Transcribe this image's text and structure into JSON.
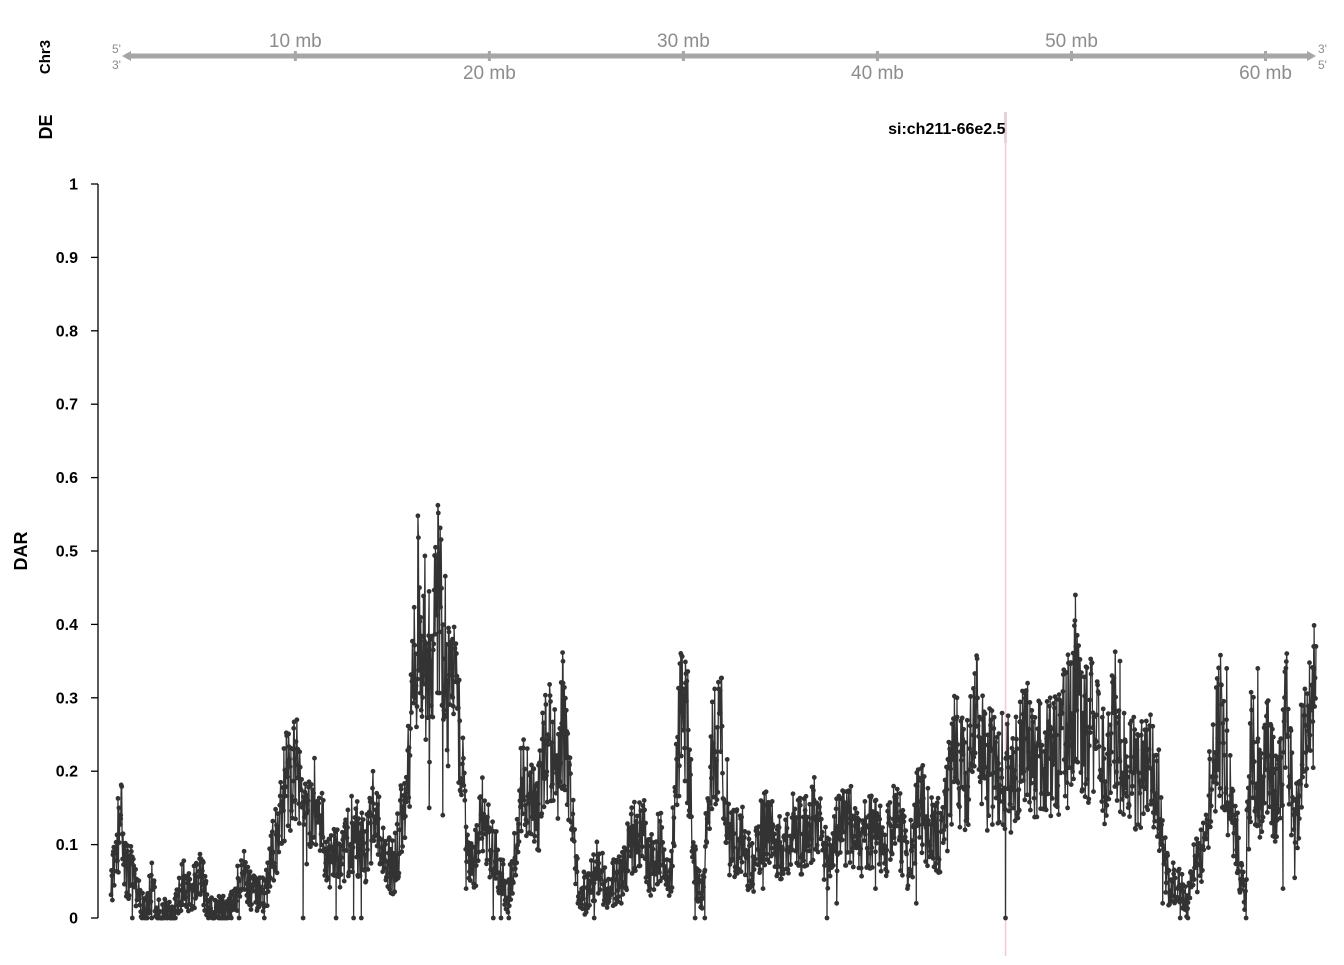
{
  "chart_data": {
    "type": "line",
    "chromosome": "Chr3",
    "tracks": {
      "ideogram_label": "Chr3",
      "de_label": "DE",
      "dar_label": "DAR"
    },
    "strand_labels": {
      "left_top": "5'",
      "left_bottom": "3'",
      "right_top": "3'",
      "right_bottom": "5'"
    },
    "genome_axis": {
      "range_mb": [
        0.5,
        62.6
      ],
      "ticks": [
        {
          "mb": 10,
          "label": "10 mb",
          "row": "top"
        },
        {
          "mb": 20,
          "label": "20 mb",
          "row": "bottom"
        },
        {
          "mb": 30,
          "label": "30 mb",
          "row": "top"
        },
        {
          "mb": 40,
          "label": "40 mb",
          "row": "bottom"
        },
        {
          "mb": 50,
          "label": "50 mb",
          "row": "top"
        },
        {
          "mb": 60,
          "label": "60 mb",
          "row": "bottom"
        }
      ]
    },
    "highlight": {
      "gene": "si:ch211-66e2.5",
      "position_mb": 46.6,
      "color": "#f4c9d3"
    },
    "y_axis": {
      "ylim": [
        0,
        1
      ],
      "ticks": [
        "0",
        "0.1",
        "0.2",
        "0.3",
        "0.4",
        "0.5",
        "0.6",
        "0.7",
        "0.8",
        "0.9",
        "1"
      ]
    },
    "line_color": "#333333",
    "anchors": [
      [
        0.5,
        0.03
      ],
      [
        0.8,
        0.1
      ],
      [
        1.0,
        0.14
      ],
      [
        1.3,
        0.06
      ],
      [
        1.6,
        0.07
      ],
      [
        2.0,
        0.02
      ],
      [
        2.3,
        0.005
      ],
      [
        2.6,
        0.05
      ],
      [
        2.9,
        0.005
      ],
      [
        3.2,
        0.01
      ],
      [
        3.7,
        0.0
      ],
      [
        4.2,
        0.05
      ],
      [
        4.6,
        0.03
      ],
      [
        5.1,
        0.06
      ],
      [
        5.6,
        0.01
      ],
      [
        6.3,
        0.01
      ],
      [
        6.8,
        0.02
      ],
      [
        7.3,
        0.07
      ],
      [
        7.8,
        0.03
      ],
      [
        8.4,
        0.03
      ],
      [
        9.1,
        0.12
      ],
      [
        9.5,
        0.18
      ],
      [
        10.0,
        0.22
      ],
      [
        10.6,
        0.13
      ],
      [
        11.0,
        0.16
      ],
      [
        11.6,
        0.09
      ],
      [
        12.4,
        0.08
      ],
      [
        13.0,
        0.12
      ],
      [
        13.6,
        0.09
      ],
      [
        14.1,
        0.15
      ],
      [
        14.5,
        0.08
      ],
      [
        15.1,
        0.07
      ],
      [
        15.6,
        0.15
      ],
      [
        16.0,
        0.28
      ],
      [
        16.4,
        0.44
      ],
      [
        16.8,
        0.35
      ],
      [
        17.0,
        0.3
      ],
      [
        17.3,
        0.47
      ],
      [
        17.6,
        0.38
      ],
      [
        17.9,
        0.29
      ],
      [
        18.3,
        0.32
      ],
      [
        18.8,
        0.1
      ],
      [
        19.2,
        0.07
      ],
      [
        19.6,
        0.15
      ],
      [
        20.0,
        0.1
      ],
      [
        20.6,
        0.06
      ],
      [
        21.0,
        0.03
      ],
      [
        21.6,
        0.16
      ],
      [
        22.0,
        0.2
      ],
      [
        22.5,
        0.14
      ],
      [
        23.0,
        0.26
      ],
      [
        23.4,
        0.2
      ],
      [
        23.8,
        0.27
      ],
      [
        24.1,
        0.21
      ],
      [
        24.5,
        0.05
      ],
      [
        25.0,
        0.03
      ],
      [
        25.6,
        0.07
      ],
      [
        26.1,
        0.04
      ],
      [
        26.8,
        0.06
      ],
      [
        27.3,
        0.1
      ],
      [
        27.8,
        0.13
      ],
      [
        28.3,
        0.07
      ],
      [
        28.8,
        0.1
      ],
      [
        29.3,
        0.04
      ],
      [
        29.8,
        0.25
      ],
      [
        30.1,
        0.3
      ],
      [
        30.6,
        0.07
      ],
      [
        31.0,
        0.04
      ],
      [
        31.5,
        0.22
      ],
      [
        32.0,
        0.24
      ],
      [
        32.4,
        0.1
      ],
      [
        33.0,
        0.12
      ],
      [
        33.5,
        0.06
      ],
      [
        34.2,
        0.13
      ],
      [
        34.9,
        0.09
      ],
      [
        35.6,
        0.12
      ],
      [
        36.2,
        0.11
      ],
      [
        36.9,
        0.14
      ],
      [
        37.4,
        0.08
      ],
      [
        37.9,
        0.11
      ],
      [
        38.5,
        0.13
      ],
      [
        39.1,
        0.1
      ],
      [
        39.7,
        0.12
      ],
      [
        40.3,
        0.1
      ],
      [
        41.0,
        0.13
      ],
      [
        41.6,
        0.08
      ],
      [
        42.2,
        0.16
      ],
      [
        42.8,
        0.11
      ],
      [
        43.4,
        0.12
      ],
      [
        44.0,
        0.23
      ],
      [
        44.5,
        0.18
      ],
      [
        45.1,
        0.26
      ],
      [
        45.6,
        0.2
      ],
      [
        46.0,
        0.21
      ],
      [
        46.6,
        0.2
      ],
      [
        47.1,
        0.19
      ],
      [
        47.6,
        0.24
      ],
      [
        48.1,
        0.2
      ],
      [
        48.7,
        0.24
      ],
      [
        49.3,
        0.21
      ],
      [
        49.9,
        0.28
      ],
      [
        50.2,
        0.3
      ],
      [
        50.6,
        0.24
      ],
      [
        51.1,
        0.26
      ],
      [
        51.7,
        0.2
      ],
      [
        52.2,
        0.27
      ],
      [
        52.6,
        0.22
      ],
      [
        53.0,
        0.19
      ],
      [
        53.5,
        0.2
      ],
      [
        54.0,
        0.21
      ],
      [
        54.5,
        0.16
      ],
      [
        55.0,
        0.04
      ],
      [
        55.5,
        0.05
      ],
      [
        56.0,
        0.02
      ],
      [
        56.4,
        0.07
      ],
      [
        56.9,
        0.1
      ],
      [
        57.3,
        0.22
      ],
      [
        57.7,
        0.26
      ],
      [
        58.1,
        0.18
      ],
      [
        58.5,
        0.11
      ],
      [
        58.9,
        0.03
      ],
      [
        59.3,
        0.25
      ],
      [
        59.7,
        0.16
      ],
      [
        60.1,
        0.22
      ],
      [
        60.6,
        0.15
      ],
      [
        61.1,
        0.27
      ],
      [
        61.5,
        0.1
      ],
      [
        61.9,
        0.25
      ],
      [
        62.4,
        0.28
      ],
      [
        62.6,
        0.3
      ]
    ],
    "peaks": [
      [
        1.0,
        0.14
      ],
      [
        9.9,
        0.23
      ],
      [
        16.4,
        0.45
      ],
      [
        17.3,
        0.49
      ],
      [
        18.1,
        0.38
      ],
      [
        23.8,
        0.32
      ],
      [
        30.1,
        0.32
      ],
      [
        31.9,
        0.28
      ],
      [
        44.1,
        0.3
      ],
      [
        48.9,
        0.3
      ],
      [
        50.2,
        0.44
      ],
      [
        52.5,
        0.35
      ],
      [
        56.3,
        0.1
      ],
      [
        58.0,
        0.34
      ],
      [
        59.6,
        0.34
      ],
      [
        62.5,
        0.34
      ]
    ],
    "troughs": [
      [
        1.6,
        0.0
      ],
      [
        2.6,
        0.0
      ],
      [
        3.2,
        0.0
      ],
      [
        3.7,
        0.0
      ],
      [
        6.7,
        0.0
      ],
      [
        7.1,
        0.0
      ],
      [
        8.4,
        0.0
      ],
      [
        10.4,
        0.0
      ],
      [
        12.1,
        0.0
      ],
      [
        13.0,
        0.0
      ],
      [
        13.4,
        0.0
      ],
      [
        16.9,
        0.15
      ],
      [
        17.6,
        0.14
      ],
      [
        18.8,
        0.04
      ],
      [
        20.2,
        0.0
      ],
      [
        20.6,
        0.0
      ],
      [
        21.0,
        0.0
      ],
      [
        25.4,
        0.0
      ],
      [
        26.1,
        0.02
      ],
      [
        26.8,
        0.02
      ],
      [
        30.6,
        0.0
      ],
      [
        31.1,
        0.0
      ],
      [
        34.1,
        0.04
      ],
      [
        37.4,
        0.0
      ],
      [
        37.9,
        0.02
      ],
      [
        39.9,
        0.04
      ],
      [
        42.0,
        0.02
      ],
      [
        46.6,
        0.0
      ],
      [
        49.8,
        0.15
      ],
      [
        54.7,
        0.02
      ],
      [
        55.6,
        0.0
      ],
      [
        56.0,
        0.0
      ],
      [
        59.0,
        0.0
      ],
      [
        60.9,
        0.04
      ]
    ]
  }
}
